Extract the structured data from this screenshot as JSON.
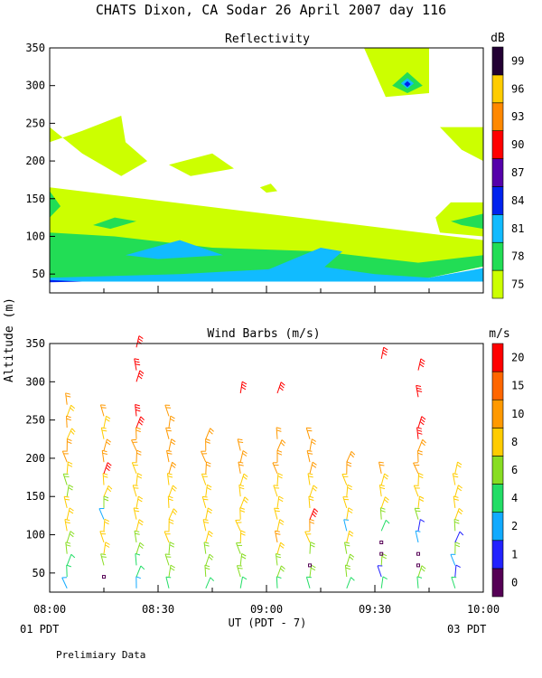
{
  "title": "CHATS Dixon, CA  Sodar  26 April 2007  day 116",
  "footer_note": "Prelimiary Data",
  "shared_axis": {
    "ylabel": "Altitude (m)",
    "xlabel": "UT  (PDT - 7)",
    "x_ticks": [
      "08:00",
      "08:30",
      "09:00",
      "09:30",
      "10:00"
    ],
    "left_date": "01 PDT",
    "right_date": "03 PDT"
  },
  "chart_data": [
    {
      "type": "heatmap",
      "title": "Reflectivity",
      "xlim": [
        8.0,
        10.0
      ],
      "ylim": [
        25,
        350
      ],
      "y_ticks": [
        50,
        100,
        150,
        200,
        250,
        300,
        350
      ],
      "colorbar": {
        "label": "dB",
        "ticks": [
          "75",
          "78",
          "81",
          "84",
          "87",
          "90",
          "93",
          "96",
          "99"
        ],
        "colors": [
          "#ccff00",
          "#22dd55",
          "#11bbff",
          "#0022ee",
          "#5500aa",
          "#ff0000",
          "#ff8800",
          "#ffcc00",
          "#220033"
        ]
      },
      "levels": [
        {
          "level_db": 75,
          "color": "#ccff00",
          "regions": [
            {
              "x": [
                8.0,
                9.25,
                9.5,
                9.6,
                9.75,
                10.0,
                10.0,
                8.0
              ],
              "y": [
                40,
                40,
                40,
                40,
                45,
                60,
                95,
                165
              ]
            },
            {
              "x": [
                8.0,
                8.15,
                8.33,
                8.35,
                8.45,
                8.33,
                8.15,
                8.0
              ],
              "y": [
                225,
                240,
                260,
                225,
                200,
                180,
                210,
                245
              ]
            },
            {
              "x": [
                8.55,
                8.75,
                8.85,
                8.65
              ],
              "y": [
                195,
                210,
                190,
                180
              ]
            },
            {
              "x": [
                8.97,
                9.02,
                9.05,
                9.0
              ],
              "y": [
                165,
                170,
                160,
                158
              ]
            },
            {
              "x": [
                9.45,
                9.75,
                9.75,
                9.55
              ],
              "y": [
                350,
                350,
                290,
                285
              ]
            },
            {
              "x": [
                9.8,
                10.0,
                10.0,
                9.9
              ],
              "y": [
                245,
                245,
                200,
                215
              ]
            },
            {
              "x": [
                9.78,
                9.85,
                10.0,
                10.0,
                9.8
              ],
              "y": [
                125,
                145,
                145,
                100,
                105
              ]
            }
          ]
        },
        {
          "level_db": 78,
          "color": "#22dd55",
          "regions": [
            {
              "x": [
                8.0,
                9.25,
                9.5,
                9.6,
                9.75,
                10.0,
                10.0,
                9.7,
                9.55,
                9.25,
                8.75,
                8.3,
                8.0
              ],
              "y": [
                40,
                40,
                40,
                40,
                45,
                60,
                75,
                65,
                70,
                80,
                85,
                100,
                105
              ]
            },
            {
              "x": [
                8.0,
                8.05,
                8.0
              ],
              "y": [
                125,
                140,
                160
              ]
            },
            {
              "x": [
                8.2,
                8.3,
                8.4,
                8.28
              ],
              "y": [
                115,
                125,
                120,
                110
              ]
            },
            {
              "x": [
                9.85,
                10.0,
                10.0,
                9.9
              ],
              "y": [
                120,
                130,
                110,
                115
              ]
            },
            {
              "x": [
                9.58,
                9.65,
                9.72,
                9.65
              ],
              "y": [
                300,
                318,
                300,
                290
              ]
            }
          ]
        },
        {
          "level_db": 81,
          "color": "#11bbff",
          "regions": [
            {
              "x": [
                8.0,
                8.3,
                8.6,
                9.2,
                9.35,
                9.55,
                9.7,
                10.0,
                10.0,
                9.75,
                9.5,
                9.25,
                8.6,
                8.0
              ],
              "y": [
                40,
                40,
                40,
                40,
                40,
                40,
                40,
                40,
                58,
                45,
                50,
                60,
                50,
                45
              ]
            },
            {
              "x": [
                8.35,
                8.6,
                8.8,
                8.5
              ],
              "y": [
                75,
                95,
                75,
                70
              ]
            },
            {
              "x": [
                9.0,
                9.25,
                9.35,
                9.25
              ],
              "y": [
                55,
                85,
                80,
                55
              ]
            },
            {
              "x": [
                9.62,
                9.65,
                9.68,
                9.65
              ],
              "y": [
                303,
                310,
                303,
                296
              ]
            }
          ]
        },
        {
          "level_db": 84,
          "color": "#0022ee",
          "regions": [
            {
              "x": [
                8.0,
                8.15,
                8.0
              ],
              "y": [
                39,
                40,
                42
              ]
            },
            {
              "x": [
                9.635,
                9.65,
                9.665,
                9.65
              ],
              "y": [
                302,
                306,
                302,
                298
              ]
            }
          ]
        }
      ]
    },
    {
      "type": "scatter",
      "title": "Wind Barbs (m/s)",
      "xlim": [
        8.0,
        10.0
      ],
      "ylim": [
        25,
        350
      ],
      "y_ticks": [
        50,
        100,
        150,
        200,
        250,
        300,
        350
      ],
      "colorbar": {
        "label": "m/s",
        "ticks": [
          "0",
          "1",
          "2",
          "4",
          "6",
          "8",
          "10",
          "15",
          "20"
        ],
        "colors": [
          "#550055",
          "#2222ff",
          "#11aaff",
          "#22dd66",
          "#88dd22",
          "#ffcc00",
          "#ff9900",
          "#ff6600",
          "#ff0000"
        ]
      },
      "columns_x": [
        8.08,
        8.25,
        8.4,
        8.55,
        8.72,
        8.88,
        9.05,
        9.2,
        9.37,
        9.53,
        9.7,
        9.87
      ],
      "heights": [
        30,
        45,
        60,
        75,
        90,
        105,
        120,
        135,
        150,
        165,
        180,
        195,
        210,
        225,
        240,
        255,
        270,
        285,
        300,
        315,
        330
      ],
      "barbs": [
        [
          [
            30,
            2
          ],
          [
            45,
            3
          ],
          [
            60,
            3
          ],
          [
            75,
            4
          ],
          [
            90,
            4
          ],
          [
            105,
            5
          ],
          [
            120,
            5
          ],
          [
            135,
            5
          ],
          [
            150,
            4
          ],
          [
            165,
            4
          ],
          [
            180,
            5
          ],
          [
            195,
            6
          ],
          [
            210,
            6
          ],
          [
            225,
            5
          ],
          [
            240,
            6
          ],
          [
            255,
            5
          ],
          [
            270,
            6
          ]
        ],
        [
          [
            45,
            0
          ],
          [
            60,
            4
          ],
          [
            75,
            5
          ],
          [
            90,
            5
          ],
          [
            105,
            5
          ],
          [
            120,
            2
          ],
          [
            135,
            4
          ],
          [
            150,
            5
          ],
          [
            165,
            5
          ],
          [
            180,
            8
          ],
          [
            195,
            6
          ],
          [
            210,
            6
          ],
          [
            225,
            5
          ],
          [
            240,
            5
          ],
          [
            255,
            6
          ]
        ],
        [
          [
            30,
            2
          ],
          [
            45,
            3
          ],
          [
            60,
            3
          ],
          [
            75,
            4
          ],
          [
            90,
            4
          ],
          [
            105,
            5
          ],
          [
            120,
            5
          ],
          [
            135,
            5
          ],
          [
            150,
            5
          ],
          [
            165,
            5
          ],
          [
            180,
            5
          ],
          [
            195,
            6
          ],
          [
            210,
            6
          ],
          [
            225,
            6
          ],
          [
            240,
            8
          ],
          [
            255,
            8
          ],
          [
            300,
            15
          ],
          [
            315,
            15
          ],
          [
            345,
            20
          ]
        ],
        [
          [
            30,
            3
          ],
          [
            45,
            4
          ],
          [
            60,
            4
          ],
          [
            75,
            4
          ],
          [
            90,
            5
          ],
          [
            105,
            5
          ],
          [
            120,
            5
          ],
          [
            135,
            5
          ],
          [
            150,
            5
          ],
          [
            165,
            5
          ],
          [
            180,
            6
          ],
          [
            195,
            6
          ],
          [
            210,
            6
          ],
          [
            225,
            6
          ],
          [
            240,
            6
          ],
          [
            255,
            6
          ]
        ],
        [
          [
            30,
            3
          ],
          [
            45,
            4
          ],
          [
            60,
            4
          ],
          [
            75,
            4
          ],
          [
            90,
            5
          ],
          [
            105,
            5
          ],
          [
            120,
            5
          ],
          [
            135,
            5
          ],
          [
            150,
            5
          ],
          [
            165,
            5
          ],
          [
            180,
            6
          ],
          [
            195,
            6
          ],
          [
            210,
            6
          ],
          [
            225,
            6
          ]
        ],
        [
          [
            30,
            3
          ],
          [
            45,
            4
          ],
          [
            60,
            4
          ],
          [
            75,
            4
          ],
          [
            90,
            5
          ],
          [
            105,
            5
          ],
          [
            120,
            5
          ],
          [
            135,
            5
          ],
          [
            150,
            5
          ],
          [
            165,
            5
          ],
          [
            180,
            6
          ],
          [
            195,
            6
          ],
          [
            210,
            6
          ],
          [
            285,
            20
          ]
        ],
        [
          [
            30,
            3
          ],
          [
            45,
            4
          ],
          [
            60,
            4
          ],
          [
            75,
            5
          ],
          [
            90,
            6
          ],
          [
            105,
            5
          ],
          [
            120,
            5
          ],
          [
            135,
            5
          ],
          [
            150,
            5
          ],
          [
            165,
            5
          ],
          [
            180,
            6
          ],
          [
            195,
            6
          ],
          [
            210,
            6
          ],
          [
            225,
            6
          ],
          [
            285,
            15
          ]
        ],
        [
          [
            30,
            3
          ],
          [
            45,
            4
          ],
          [
            60,
            0
          ],
          [
            75,
            4
          ],
          [
            90,
            5
          ],
          [
            105,
            6
          ],
          [
            120,
            8
          ],
          [
            135,
            5
          ],
          [
            150,
            5
          ],
          [
            165,
            5
          ],
          [
            180,
            6
          ],
          [
            195,
            6
          ],
          [
            210,
            6
          ],
          [
            225,
            6
          ]
        ],
        [
          [
            30,
            3
          ],
          [
            45,
            4
          ],
          [
            60,
            4
          ],
          [
            75,
            4
          ],
          [
            90,
            5
          ],
          [
            105,
            2
          ],
          [
            120,
            5
          ],
          [
            135,
            5
          ],
          [
            150,
            5
          ],
          [
            165,
            5
          ],
          [
            180,
            6
          ],
          [
            195,
            6
          ]
        ],
        [
          [
            30,
            3
          ],
          [
            45,
            1
          ],
          [
            60,
            4
          ],
          [
            75,
            0
          ],
          [
            90,
            0
          ],
          [
            105,
            3
          ],
          [
            120,
            4
          ],
          [
            135,
            5
          ],
          [
            150,
            5
          ],
          [
            165,
            5
          ],
          [
            180,
            6
          ],
          [
            330,
            15
          ]
        ],
        [
          [
            30,
            3
          ],
          [
            45,
            4
          ],
          [
            60,
            0
          ],
          [
            75,
            0
          ],
          [
            90,
            2
          ],
          [
            105,
            1
          ],
          [
            120,
            4
          ],
          [
            135,
            5
          ],
          [
            150,
            5
          ],
          [
            165,
            5
          ],
          [
            180,
            6
          ],
          [
            195,
            6
          ],
          [
            210,
            6
          ],
          [
            225,
            8
          ],
          [
            240,
            8
          ],
          [
            280,
            20
          ],
          [
            315,
            8
          ]
        ],
        [
          [
            30,
            3
          ],
          [
            45,
            1
          ],
          [
            60,
            2
          ],
          [
            75,
            4
          ],
          [
            90,
            1
          ],
          [
            105,
            4
          ],
          [
            120,
            5
          ],
          [
            135,
            5
          ],
          [
            150,
            5
          ],
          [
            165,
            5
          ],
          [
            180,
            5
          ]
        ]
      ]
    }
  ]
}
